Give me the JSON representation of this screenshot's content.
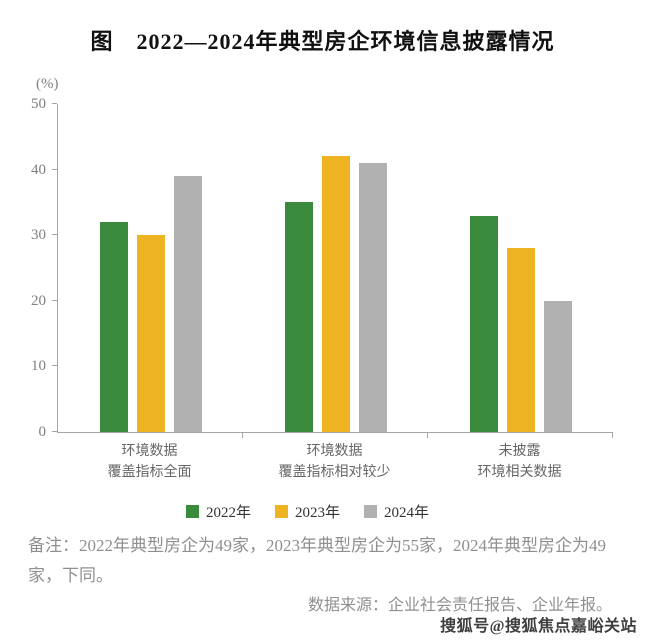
{
  "title": "图　2022—2024年典型房企环境信息披露情况",
  "chart_data": {
    "type": "bar",
    "unit_label": "(%)",
    "categories": [
      {
        "l1": "环境数据",
        "l2": "覆盖指标全面"
      },
      {
        "l1": "环境数据",
        "l2": "覆盖指标相对较少"
      },
      {
        "l1": "未披露",
        "l2": "环境相关数据"
      }
    ],
    "series": [
      {
        "name": "2022年",
        "color": "#3a8a3d",
        "values": [
          32,
          35,
          33
        ]
      },
      {
        "name": "2023年",
        "color": "#eeb320",
        "values": [
          30,
          42,
          28
        ]
      },
      {
        "name": "2024年",
        "color": "#b1b1b1",
        "values": [
          39,
          41,
          20
        ]
      }
    ],
    "ylim": [
      0,
      50
    ],
    "yticks": [
      50,
      40,
      30,
      20,
      10,
      0
    ],
    "grid": false,
    "legend_position": "bottom",
    "xlabel": "",
    "ylabel": "(%)"
  },
  "note": "备注：2022年典型房企为49家，2023年典型房企为55家，2024年典型房企为49家，下同。",
  "source": "数据来源：企业社会责任报告、企业年报。",
  "watermark": "搜狐号@搜狐焦点嘉峪关站"
}
